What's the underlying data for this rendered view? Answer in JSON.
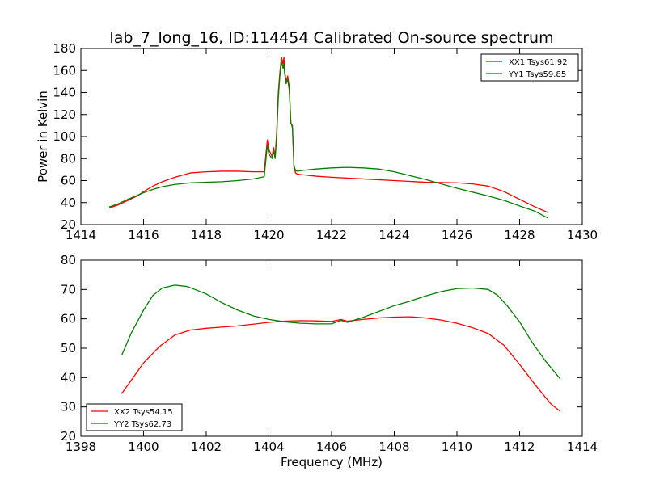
{
  "chart_data": [
    {
      "type": "line",
      "title": "lab_7_long_16, ID:114454 Calibrated On-source spectrum",
      "xlabel": "",
      "ylabel": "Power in Kelvin",
      "xlim": [
        1414,
        1430
      ],
      "ylim": [
        20,
        180
      ],
      "xticks": [
        "1414",
        "1416",
        "1418",
        "1420",
        "1422",
        "1424",
        "1426",
        "1428",
        "1430"
      ],
      "yticks": [
        "20",
        "40",
        "60",
        "80",
        "100",
        "120",
        "140",
        "160",
        "180"
      ],
      "legend_position": "upper right",
      "grid": false,
      "series": [
        {
          "name": "XX1 Tsys61.92",
          "color": "#ff0000",
          "x": [
            1414.9,
            1415.2,
            1415.5,
            1415.8,
            1416.0,
            1416.3,
            1416.6,
            1417.0,
            1417.5,
            1418.0,
            1418.5,
            1419.0,
            1419.5,
            1419.85,
            1419.95,
            1420.0,
            1420.1,
            1420.15,
            1420.2,
            1420.25,
            1420.3,
            1420.35,
            1420.4,
            1420.45,
            1420.48,
            1420.5,
            1420.55,
            1420.6,
            1420.65,
            1420.7,
            1420.75,
            1420.8,
            1420.85,
            1420.9,
            1421.0,
            1421.5,
            1422.0,
            1423.0,
            1424.0,
            1425.0,
            1426.0,
            1426.5,
            1427.0,
            1427.5,
            1428.0,
            1428.5,
            1428.9
          ],
          "y": [
            35,
            38,
            42,
            46,
            50,
            55,
            59,
            63,
            67,
            68,
            68.5,
            68.5,
            68,
            68,
            97,
            88,
            82,
            90,
            82,
            105,
            140,
            158,
            172,
            166,
            172,
            160,
            150,
            155,
            145,
            112,
            110,
            72,
            67,
            66,
            65.5,
            64,
            63,
            61.5,
            60,
            58.5,
            58,
            57,
            55,
            50,
            43,
            36,
            31
          ]
        },
        {
          "name": "YY1 Tsys59.85",
          "color": "#008000",
          "x": [
            1414.9,
            1415.2,
            1415.5,
            1415.8,
            1416.0,
            1416.3,
            1416.6,
            1417.0,
            1417.5,
            1418.0,
            1418.5,
            1419.0,
            1419.5,
            1419.85,
            1419.95,
            1420.0,
            1420.1,
            1420.15,
            1420.2,
            1420.25,
            1420.3,
            1420.35,
            1420.4,
            1420.45,
            1420.48,
            1420.5,
            1420.55,
            1420.6,
            1420.65,
            1420.7,
            1420.75,
            1420.8,
            1420.85,
            1420.9,
            1421.0,
            1421.5,
            1422.0,
            1422.5,
            1423.0,
            1423.5,
            1424.0,
            1424.5,
            1425.0,
            1425.5,
            1426.0,
            1426.5,
            1427.0,
            1427.5,
            1428.0,
            1428.5,
            1428.9
          ],
          "y": [
            36,
            39,
            43,
            46.5,
            49,
            52,
            54.5,
            56.5,
            58,
            58.5,
            59,
            60,
            61.5,
            63.5,
            92,
            84,
            80,
            87,
            80,
            100,
            135,
            155,
            168,
            162,
            166,
            158,
            148,
            152,
            142,
            113,
            108,
            74,
            69,
            68.5,
            69,
            70.5,
            71.5,
            72,
            71.5,
            70.5,
            68,
            64.5,
            61,
            57,
            53,
            49.5,
            46,
            42,
            37,
            32,
            26
          ]
        }
      ]
    },
    {
      "type": "line",
      "title": "",
      "xlabel": "Frequency (MHz)",
      "ylabel": "",
      "xlim": [
        1398,
        1414
      ],
      "ylim": [
        20,
        80
      ],
      "xticks": [
        "1398",
        "1400",
        "1402",
        "1404",
        "1406",
        "1408",
        "1410",
        "1412",
        "1414"
      ],
      "yticks": [
        "20",
        "30",
        "40",
        "50",
        "60",
        "70",
        "80"
      ],
      "legend_position": "lower left",
      "grid": false,
      "series": [
        {
          "name": "XX2 Tsys54.15",
          "color": "#ff0000",
          "x": [
            1399.3,
            1399.6,
            1400.0,
            1400.5,
            1401.0,
            1401.5,
            1402.0,
            1402.5,
            1403.0,
            1403.5,
            1404.0,
            1404.5,
            1405.0,
            1405.5,
            1406.0,
            1406.3,
            1406.5,
            1407.0,
            1407.5,
            1408.0,
            1408.5,
            1409.0,
            1409.5,
            1410.0,
            1410.5,
            1411.0,
            1411.5,
            1412.0,
            1412.5,
            1413.0,
            1413.3
          ],
          "y": [
            34.5,
            39,
            45,
            50.5,
            54.5,
            56.2,
            56.8,
            57.2,
            57.6,
            58.2,
            58.8,
            59.2,
            59.4,
            59.3,
            59.1,
            59.8,
            59.2,
            59.8,
            60.3,
            60.6,
            60.7,
            60.3,
            59.6,
            58.5,
            57,
            55,
            51,
            44.5,
            37.5,
            31,
            28.5
          ]
        },
        {
          "name": "YY2 Tsys62.73",
          "color": "#008000",
          "x": [
            1399.3,
            1399.6,
            1400.0,
            1400.3,
            1400.6,
            1401.0,
            1401.4,
            1402.0,
            1402.5,
            1403.0,
            1403.5,
            1404.0,
            1404.5,
            1405.0,
            1405.5,
            1406.0,
            1406.3,
            1406.5,
            1407.0,
            1407.5,
            1408.0,
            1408.5,
            1409.0,
            1409.5,
            1410.0,
            1410.5,
            1411.0,
            1411.3,
            1411.6,
            1412.0,
            1412.4,
            1412.8,
            1413.3
          ],
          "y": [
            47.5,
            55,
            63,
            68,
            70.5,
            71.5,
            71,
            68.5,
            65.5,
            63,
            61,
            59.8,
            59,
            58.5,
            58.3,
            58.3,
            59.5,
            58.8,
            60.5,
            62.5,
            64.5,
            66,
            67.8,
            69.3,
            70.3,
            70.5,
            70,
            68,
            64.5,
            59,
            52,
            46,
            39.5
          ]
        }
      ]
    }
  ]
}
